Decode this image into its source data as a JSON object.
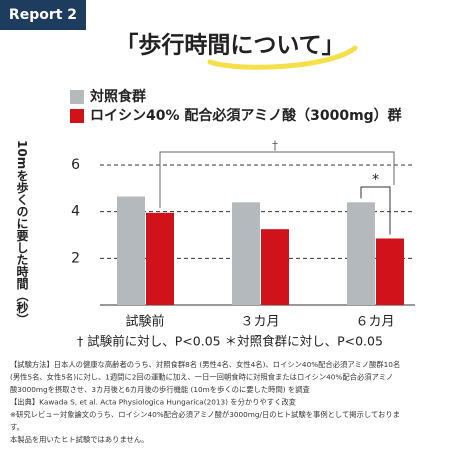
{
  "badge": "Report 2",
  "chart_data": {
    "type": "bar",
    "title": "「歩行時間について」",
    "y_label": "10mを歩くのに要した時間（秒）",
    "categories": [
      "試験前",
      "３カ月",
      "６カ月"
    ],
    "series": [
      {
        "name": "対照食群",
        "color": "#b4b9bd",
        "values": [
          4.65,
          4.4,
          4.4
        ]
      },
      {
        "name": "ロイシン40% 配合必須アミノ酸（3000mg）群",
        "color": "#d0121b",
        "values": [
          3.95,
          3.25,
          2.85
        ]
      }
    ],
    "ylim": [
      0,
      6
    ],
    "yticks": [
      2,
      4,
      6
    ],
    "grid": true,
    "annotations": [
      "†",
      "*"
    ],
    "footnote": "† 試験前に対し、P<0.05 ＊対照食群に対し、P<0.05"
  },
  "notes": [
    "【試験方法】日本人の健康な高齢者のうち、対照食群8名 (男性4名、女性4名)、ロイシン40%配合必須アミノ酸群10名",
    "(男性5名、女性5名)に対し、1週間に2回の運動に加え、一日一回朝食時に対照食またはロイシン40%配合必須アミノ",
    "酸3000mgを摂取させ、3カ月後と6カ月後の歩行機能 (10mを歩くのに要した時間) を調査",
    "【出典】Kawada S, et al. Acta Physiologica Hungarica(2013) を分かりやすく改変",
    "※研究レビュー対象論文のうち、ロイシン40%配合必須アミノ酸が3000mg/日のヒト試験を事例として掲示しておりま",
    "す。",
    "本製品を用いたヒト試験ではありません。"
  ]
}
